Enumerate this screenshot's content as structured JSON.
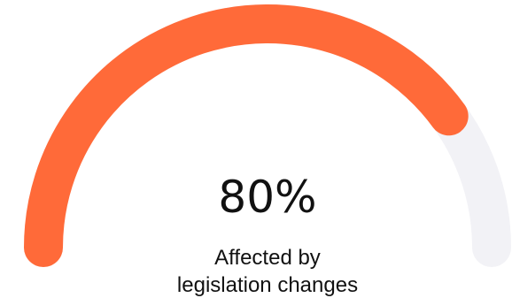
{
  "chart_data": {
    "type": "gauge",
    "value": 80,
    "min": 0,
    "max": 100,
    "value_label": "80%",
    "label_lines": [
      "Affected by",
      "legislation changes"
    ],
    "colors": {
      "fill": "#FF6A39",
      "track": "#F2F2F6"
    }
  }
}
